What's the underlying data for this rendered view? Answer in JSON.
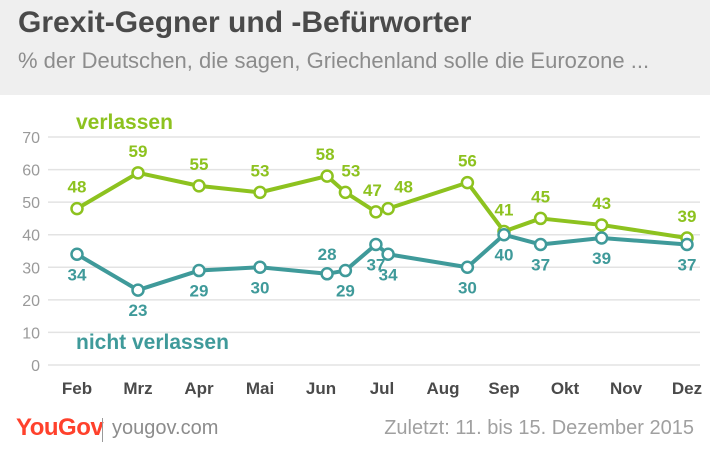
{
  "title": "Grexit-Gegner und -Befürworter",
  "subtitle": "% der Deutschen, die sagen, Griechenland solle die Eurozone ...",
  "footer": {
    "brand": "YouGov",
    "url": "yougov.com",
    "date": "Zuletzt: 11. bis 15. Dezember 2015"
  },
  "chart_data": {
    "type": "line",
    "ylim": [
      0,
      70
    ],
    "yticks": [
      0,
      10,
      20,
      30,
      40,
      50,
      60,
      70
    ],
    "grid": true,
    "month_labels": [
      "Feb",
      "Mrz",
      "Apr",
      "Mai",
      "Jun",
      "Jul",
      "Aug",
      "Sep",
      "Okt",
      "Nov",
      "Dez"
    ],
    "x": [
      1.0,
      2.0,
      3.0,
      4.0,
      5.1,
      5.4,
      5.9,
      6.1,
      7.4,
      8.0,
      8.6,
      9.6,
      11.0
    ],
    "series": [
      {
        "name": "verlassen",
        "color": "#8dc21f",
        "values": [
          48,
          59,
          55,
          53,
          58,
          53,
          47,
          48,
          56,
          41,
          45,
          43,
          39
        ]
      },
      {
        "name": "nicht verlassen",
        "color": "#3f9a9a",
        "values": [
          34,
          23,
          29,
          30,
          28,
          29,
          37,
          34,
          30,
          40,
          37,
          39,
          37
        ]
      }
    ]
  }
}
